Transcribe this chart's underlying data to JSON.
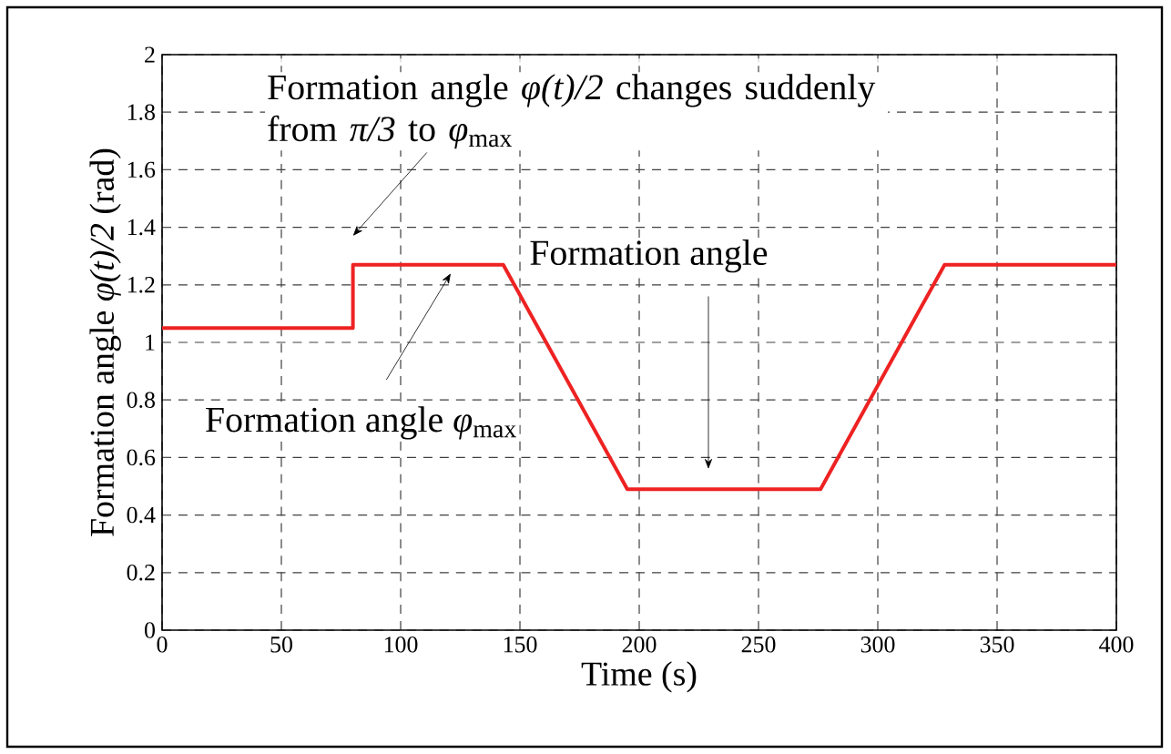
{
  "chart_data": {
    "type": "line",
    "xlabel": "Time (s)",
    "ylabel": "Formation angle *φ(t)/2* (rad)",
    "x": [
      0,
      80,
      80,
      143,
      195,
      276,
      328,
      400
    ],
    "series": [
      {
        "color": "#ee2222",
        "values": [
          1.05,
          1.05,
          1.27,
          1.27,
          0.49,
          0.49,
          1.27,
          1.27
        ]
      }
    ],
    "xlim": [
      0,
      400
    ],
    "xticks": [
      0,
      50,
      100,
      150,
      200,
      250,
      300,
      350,
      400
    ],
    "ylim": [
      0,
      2
    ],
    "yticks": [
      0,
      0.2,
      0.4,
      0.6,
      0.8,
      1,
      1.2,
      1.4,
      1.6,
      1.8,
      2
    ],
    "grid": true,
    "marker": "none",
    "line_style": "solid",
    "annotations": [
      "Formation angle *φ(t)/2* changes suddenly from *π/3* to *φ*$_{max}$",
      "Formation angle *φ*$_{max}$",
      "Formation angle"
    ]
  }
}
